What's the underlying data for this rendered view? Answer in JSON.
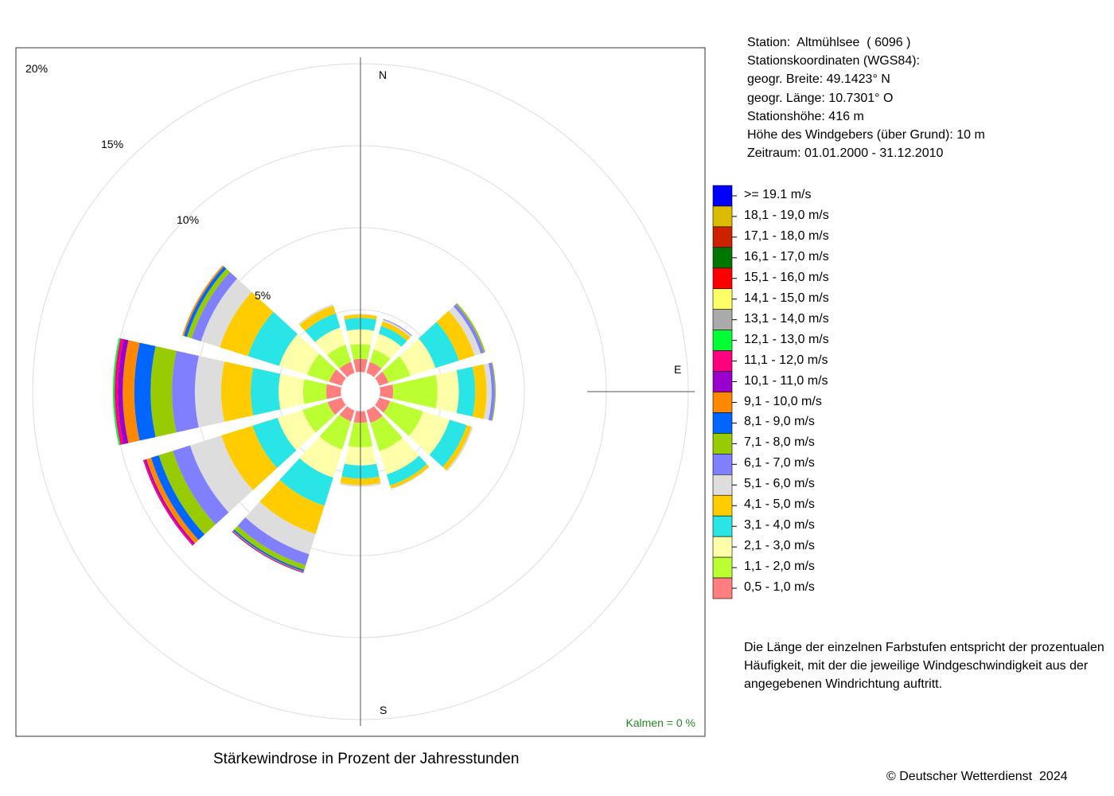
{
  "station_info": {
    "lines": [
      "Station:  Altmühlsee  ( 6096 )",
      "Stationskoordinaten (WGS84):",
      "geogr. Breite: 49.1423° N",
      "geogr. Länge: 10.7301° O",
      "Stationshöhe: 416 m",
      "Höhe des Windgebers (über Grund): 10 m",
      "Zeitraum: 01.01.2000 - 31.12.2010"
    ]
  },
  "legend_note": [
    "Die Länge der einzelnen Farbstufen entspricht der prozentualen",
    "Häufigkeit, mit der die jeweilige Windgeschwindigkeit aus der",
    "angegebenen Windrichtung auftritt."
  ],
  "copyright": "© Deutscher Wetterdienst  2024",
  "calm_label": "Kalmen  =  0 %",
  "chart_data": {
    "type": "wind-rose",
    "title": "Stärkewindrose in Prozent der Jahresstunden",
    "direction_labels": {
      "N": "N",
      "E": "E",
      "S": "S"
    },
    "ring_labels": [
      "5%",
      "10%",
      "15%",
      "20%"
    ],
    "ring_values": [
      5,
      10,
      15,
      20
    ],
    "directions_deg": [
      0,
      30,
      60,
      90,
      120,
      150,
      180,
      210,
      240,
      270,
      300,
      330
    ],
    "speed_classes": [
      {
        "label": "0,5 - 1,0 m/s",
        "color": "#ff7f7f"
      },
      {
        "label": "1,1 - 2,0 m/s",
        "color": "#bbff33"
      },
      {
        "label": "2,1 - 3,0 m/s",
        "color": "#ffffaa"
      },
      {
        "label": "3,1 - 4,0 m/s",
        "color": "#2ae5e5"
      },
      {
        "label": "4,1 - 5,0 m/s",
        "color": "#ffcc00"
      },
      {
        "label": "5,1 - 6,0 m/s",
        "color": "#dddddd"
      },
      {
        "label": "6,1 - 7,0 m/s",
        "color": "#8080ff"
      },
      {
        "label": "7,1 - 8,0 m/s",
        "color": "#99cc00"
      },
      {
        "label": "8,1 - 9,0 m/s",
        "color": "#0066ff"
      },
      {
        "label": "9,1 - 10,0 m/s",
        "color": "#ff8800"
      },
      {
        "label": "10,1 - 11,0 m/s",
        "color": "#9900cc"
      },
      {
        "label": "11,1 - 12,0 m/s",
        "color": "#ff0080"
      },
      {
        "label": "12,1 - 13,0 m/s",
        "color": "#00ff33"
      },
      {
        "label": "13,1 - 14,0 m/s",
        "color": "#aaaaaa"
      },
      {
        "label": "14,1 - 15,0 m/s",
        "color": "#ffff66"
      },
      {
        "label": "15,1 - 16,0 m/s",
        "color": "#ff0000"
      },
      {
        "label": "16,1 - 17,0 m/s",
        "color": "#007700"
      },
      {
        "label": "17,1 - 18,0 m/s",
        "color": "#cc2200"
      },
      {
        "label": "18,1 - 19,0 m/s",
        "color": "#ddbb00"
      },
      {
        "label": ">= 19.1 m/s",
        "color": "#0000ff"
      }
    ],
    "hub_value": 1.2,
    "frequencies": [
      [
        0.8,
        0.9,
        0.9,
        0.7,
        0.2,
        0.05
      ],
      [
        0.7,
        0.8,
        1.0,
        0.5,
        0.3,
        0.1,
        0.05
      ],
      [
        0.6,
        1.4,
        1.6,
        1.5,
        1.0,
        0.4,
        0.2,
        0.1
      ],
      [
        0.8,
        2.7,
        1.3,
        1.0,
        0.7,
        0.3,
        0.2,
        0.05
      ],
      [
        0.7,
        2.1,
        1.7,
        1.1,
        0.3,
        0.1
      ],
      [
        0.8,
        1.8,
        1.5,
        0.7,
        0.2,
        0.05
      ],
      [
        0.7,
        1.5,
        1.1,
        0.8,
        0.4,
        0.1
      ],
      [
        0.7,
        1.8,
        1.8,
        1.8,
        1.8,
        1.3,
        0.7,
        0.3,
        0.1,
        0.05,
        0.05
      ],
      [
        0.9,
        1.6,
        1.6,
        1.6,
        2.0,
        2.0,
        1.1,
        0.9,
        0.5,
        0.3,
        0.1,
        0.1
      ],
      [
        0.9,
        1.4,
        1.5,
        1.7,
        1.8,
        1.6,
        1.4,
        1.3,
        1.0,
        0.7,
        0.3,
        0.2,
        0.1
      ],
      [
        0.8,
        1.4,
        1.8,
        2.0,
        1.8,
        1.2,
        0.6,
        0.3,
        0.2,
        0.1
      ],
      [
        0.7,
        1.1,
        1.1,
        0.9,
        0.5,
        0.1
      ]
    ]
  }
}
